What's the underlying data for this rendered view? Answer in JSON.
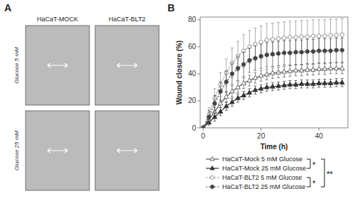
{
  "chart_data": [
    {
      "type": "image_grid",
      "title": "A",
      "color": "#bbbbbb",
      "categories": [
        "HaCaT-MOCK",
        "HaCaT-BLT2"
      ],
      "annotations": [
        "Glucose 5 mM",
        "Glucose 25 mM"
      ]
    },
    {
      "type": "line",
      "title": "B",
      "xlabel": "Time (h)",
      "ylabel": "Wound closure (%)",
      "xlim": [
        -1,
        50
      ],
      "ylim": [
        0,
        82
      ],
      "xticks": [
        0,
        20,
        40
      ],
      "yticks": [
        0,
        20,
        40,
        60,
        80
      ],
      "x": [
        0,
        2,
        4,
        6,
        8,
        10,
        12,
        14,
        16,
        18,
        20,
        22,
        24,
        26,
        28,
        30,
        32,
        34,
        36,
        38,
        40,
        42,
        44,
        46,
        48
      ],
      "series": [
        {
          "name": "HaCaT-Mock 5 mM Glucose",
          "color": "#555555",
          "marker": "open-triangle",
          "line_style": "solid",
          "values": [
            0,
            6,
            12,
            18,
            23,
            27,
            30,
            33,
            35,
            37,
            38.5,
            39.5,
            40.5,
            41,
            41.5,
            42,
            42.5,
            42.5,
            43,
            43,
            43.5,
            43.5,
            44,
            44,
            44
          ],
          "errors": [
            0,
            2,
            3,
            3,
            4,
            4,
            4,
            4,
            4,
            4,
            4,
            4,
            4,
            4,
            4,
            4,
            4,
            4,
            4,
            4,
            4,
            4,
            4,
            4,
            4
          ]
        },
        {
          "name": "HaCaT-Mock 25 mM Glucose",
          "color": "#333333",
          "marker": "triangle",
          "line_style": "solid",
          "values": [
            0,
            4,
            8,
            12,
            16,
            19,
            22,
            24,
            26,
            28,
            29,
            30,
            30.5,
            31,
            31.5,
            32,
            32,
            32.5,
            32.5,
            32.5,
            33,
            33,
            33,
            33.5,
            33.5
          ],
          "errors": [
            0,
            2,
            3,
            3,
            3,
            3,
            3,
            3,
            3,
            3,
            3,
            3,
            3,
            3,
            3,
            3,
            3,
            3,
            3,
            3,
            3,
            3,
            3,
            3,
            3
          ]
        },
        {
          "name": "HaCaT-BLT2 5 mM Glucose",
          "color": "#888888",
          "marker": "open-circle",
          "line_style": "dotted",
          "values": [
            0,
            10,
            22,
            32,
            41,
            48,
            53,
            57,
            60,
            62,
            63.5,
            65,
            65.5,
            66,
            66.5,
            67,
            67,
            67.5,
            67.5,
            68,
            68,
            68,
            68.5,
            68.5,
            69
          ],
          "errors": [
            0,
            5,
            7,
            9,
            10,
            11,
            11,
            12,
            12,
            12,
            12,
            12,
            12,
            12,
            12,
            12,
            12,
            12,
            12,
            12,
            12,
            12,
            12,
            12,
            12
          ]
        },
        {
          "name": "HaCaT-BLT2 25 mM Glucose",
          "color": "#444444",
          "marker": "circle",
          "line_style": "dotted",
          "values": [
            0,
            8,
            18,
            27,
            34,
            40,
            44,
            47,
            50,
            51.5,
            53,
            54,
            54.5,
            55,
            55.5,
            55.5,
            56,
            56,
            56.5,
            56.5,
            57,
            57,
            57,
            57.5,
            57.5
          ],
          "errors": [
            0,
            5,
            6,
            7,
            8,
            8,
            9,
            9,
            9,
            9,
            9,
            9,
            9,
            9,
            9,
            9,
            9,
            9,
            9,
            9,
            9,
            9,
            9,
            9,
            9
          ]
        }
      ],
      "annotations": [
        "*",
        "*",
        "**"
      ]
    }
  ]
}
